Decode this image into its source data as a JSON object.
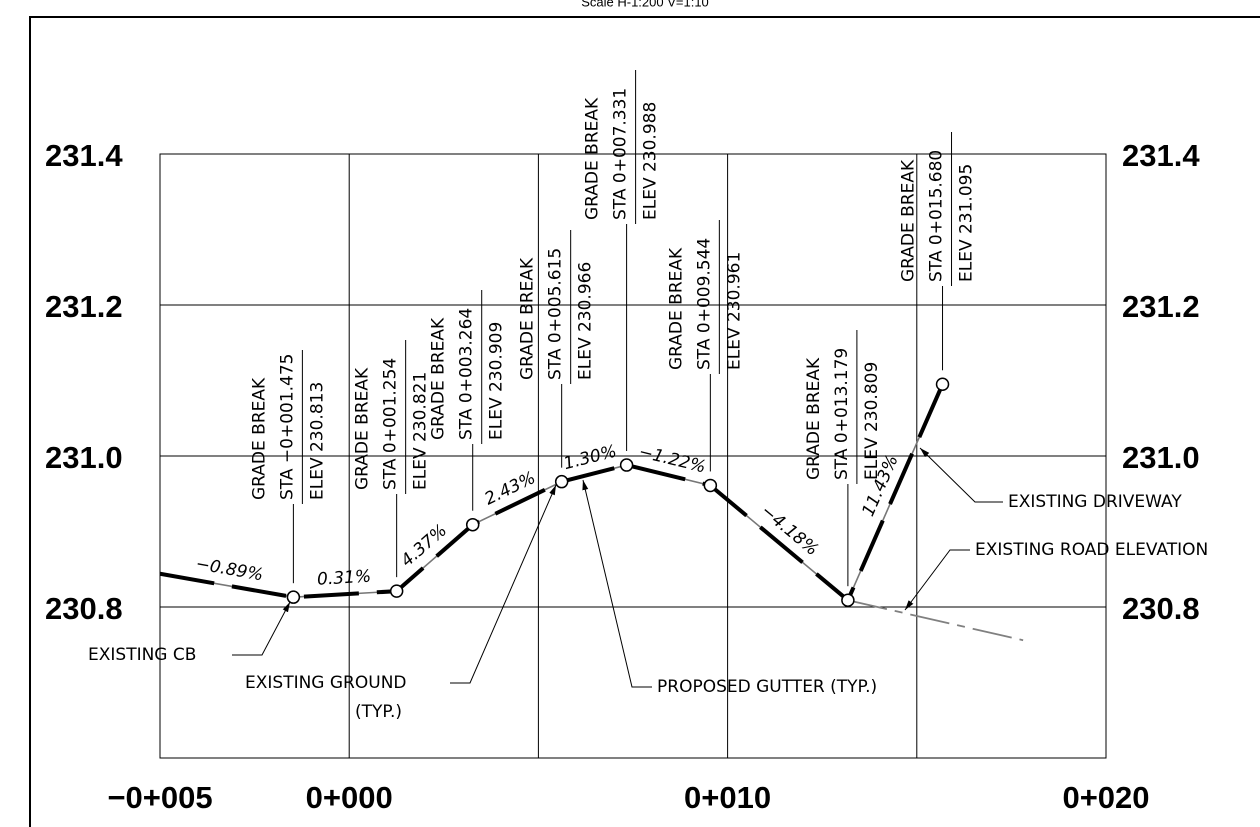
{
  "title": "Scale H-1:200  V=1:10",
  "chart_data": {
    "type": "line",
    "xlim": [
      -5,
      20
    ],
    "ylim": [
      230.6,
      231.4
    ],
    "xticks": [
      {
        "value": -5,
        "label": "−0+005"
      },
      {
        "value": 0,
        "label": "0+000"
      },
      {
        "value": 5,
        "label": null
      },
      {
        "value": 10,
        "label": "0+010"
      },
      {
        "value": 15,
        "label": null
      },
      {
        "value": 20,
        "label": "0+020"
      }
    ],
    "yticks": [
      230.8,
      {
        "value": 231,
        "label": "231.0"
      },
      231.2,
      231.4
    ],
    "grid": true,
    "series": [
      {
        "color": "#000000",
        "x": [
          -5,
          -1.475,
          1.254,
          3.264,
          5.615,
          7.331,
          9.544,
          13.179,
          15.68
        ],
        "values": [
          230.844,
          230.813,
          230.821,
          230.909,
          230.966,
          230.988,
          230.961,
          230.809,
          231.095
        ],
        "grade_labels": [
          "−0.89%",
          "0.31%",
          "4.37%",
          "2.43%",
          "1.30%",
          "−1.22%",
          "−4.18%",
          "11.43%"
        ]
      },
      {
        "color": "#808080",
        "x": [
          13.179,
          17.81
        ],
        "values": [
          230.809,
          230.756
        ]
      }
    ],
    "grade_breaks": [
      [
        "GRADE BREAK",
        "STA −0+001.475",
        "ELEV 230.813"
      ],
      [
        "GRADE BREAK",
        "STA 0+001.254",
        "ELEV 230.821"
      ],
      [
        "GRADE BREAK",
        "STA 0+003.264",
        "ELEV 230.909"
      ],
      [
        "GRADE BREAK",
        "STA 0+005.615",
        "ELEV 230.966"
      ],
      [
        "GRADE BREAK",
        "STA 0+007.331",
        "ELEV 230.988"
      ],
      [
        "GRADE BREAK",
        "STA 0+009.544",
        "ELEV 230.961"
      ],
      [
        "GRADE BREAK",
        "STA 0+013.179",
        "ELEV 230.809"
      ],
      [
        "GRADE BREAK",
        "STA 0+015.680",
        "ELEV 231.095"
      ]
    ],
    "callouts": [
      [
        "EXISTING CB"
      ],
      [
        "EXISTING GROUND",
        "(TYP.)"
      ],
      [
        "PROPOSED GUTTER (TYP.)"
      ],
      [
        "EXISTING DRIVEWAY"
      ],
      [
        "EXISTING ROAD ELEVATION"
      ]
    ]
  }
}
